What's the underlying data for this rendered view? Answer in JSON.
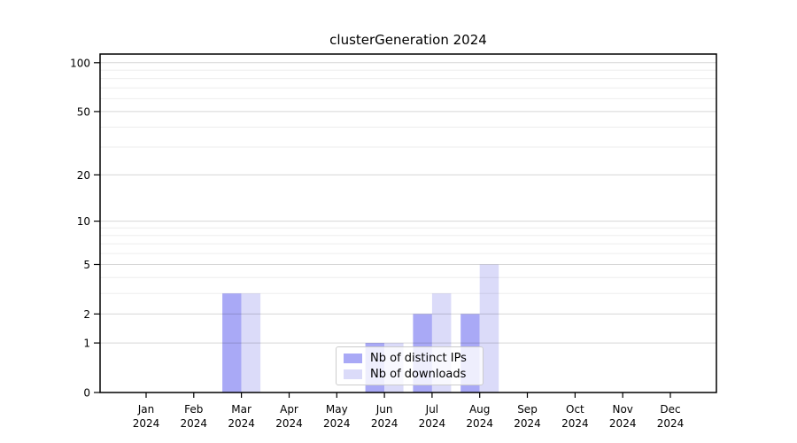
{
  "chart_data": {
    "type": "bar",
    "title": "clusterGeneration 2024",
    "categories": [
      "Jan",
      "Feb",
      "Mar",
      "Apr",
      "May",
      "Jun",
      "Jul",
      "Aug",
      "Sep",
      "Oct",
      "Nov",
      "Dec"
    ],
    "x_year_label": "2024",
    "series": [
      {
        "name": "Nb of distinct IPs",
        "color": "#a9a9f6",
        "values": [
          0,
          0,
          3,
          0,
          0,
          1,
          2,
          2,
          0,
          0,
          0,
          0
        ]
      },
      {
        "name": "Nb of downloads",
        "color": "#dbdbf9",
        "values": [
          0,
          0,
          3,
          0,
          0,
          1,
          3,
          5,
          0,
          0,
          0,
          0
        ]
      }
    ],
    "yscale": "log1p",
    "ylim": [
      0,
      113
    ],
    "y_ticks": [
      0,
      1,
      2,
      5,
      10,
      20,
      50,
      100
    ],
    "y_minor_ticks": [
      3,
      4,
      6,
      7,
      8,
      9,
      30,
      40,
      60,
      70,
      80,
      90
    ],
    "grid": "horizontal",
    "legend_position": "lower center",
    "colors": {
      "spine": "#000000",
      "major_grid": "rgba(0,0,0,0.16)",
      "minor_grid": "rgba(0,0,0,0.07)",
      "background": "#ffffff"
    }
  }
}
